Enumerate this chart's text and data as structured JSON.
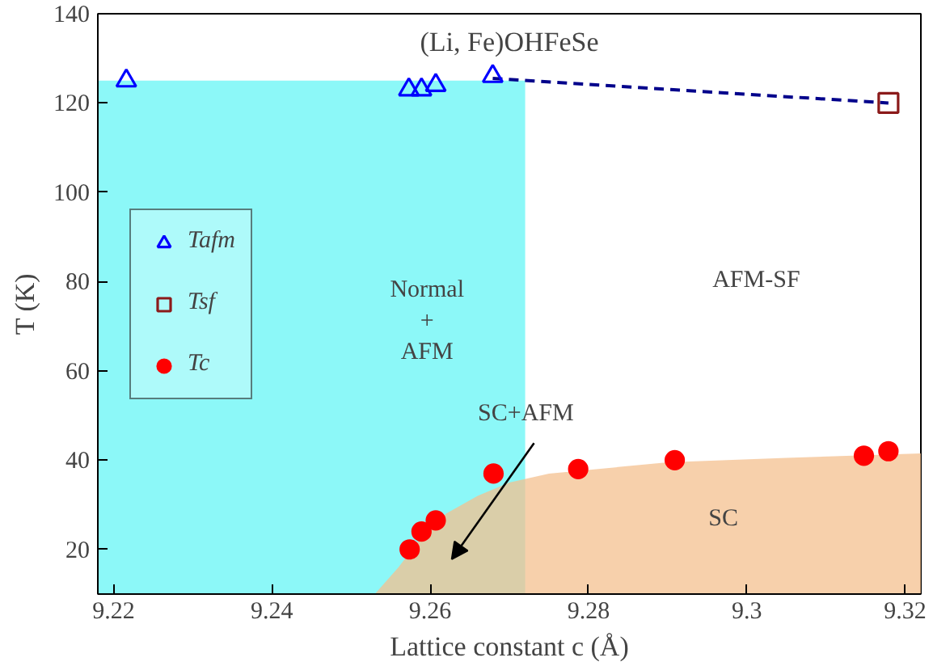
{
  "chart_data": {
    "type": "scatter",
    "title": "(Li, Fe)OHFeSe",
    "xlabel": "Lattice constant c (Å)",
    "ylabel": "T (K)",
    "xlim": [
      9.218,
      9.322
    ],
    "ylim": [
      10,
      140
    ],
    "xticks": [
      9.22,
      9.24,
      9.26,
      9.28,
      9.3,
      9.32
    ],
    "yticks": [
      20,
      40,
      60,
      80,
      100,
      120,
      140
    ],
    "grid": false,
    "legend": "left",
    "series": [
      {
        "type": "area",
        "color": "#66f5f5",
        "x": [
          9.218,
          9.272
        ],
        "values": [
          125,
          125
        ]
      },
      {
        "type": "area",
        "color": "#f4c08f",
        "x": [
          9.253,
          9.256,
          9.259,
          9.262,
          9.266,
          9.27,
          9.275,
          9.29,
          9.305,
          9.322
        ],
        "values": [
          10,
          16,
          23,
          28,
          32,
          35,
          37,
          39.5,
          40.5,
          41.5
        ]
      },
      {
        "type": "line",
        "line_style": "dashed",
        "marker": "none",
        "color": "#00008b",
        "x": [
          9.2679,
          9.3179
        ],
        "values": [
          125.5,
          120
        ]
      },
      {
        "name": "Tafm",
        "marker": "triangle",
        "color": "#0000ff",
        "x": [
          9.2216,
          9.2573,
          9.2589,
          9.2607,
          9.2679
        ],
        "values": [
          125,
          123,
          123,
          124,
          126
        ]
      },
      {
        "name": "Tsf",
        "marker": "square",
        "color": "#8b1a1a",
        "x": [
          9.3179
        ],
        "values": [
          120
        ]
      },
      {
        "name": "Tc",
        "marker": "circle",
        "color": "#ff0000",
        "x": [
          9.2574,
          9.2589,
          9.2607,
          9.268,
          9.2787,
          9.2909,
          9.3148,
          9.3179
        ],
        "values": [
          20,
          24,
          26.5,
          37,
          38,
          40,
          41,
          42
        ]
      }
    ],
    "annotations": [
      "Normal\n+\nAFM",
      "AFM-SF",
      "SC",
      "SC+AFM"
    ]
  }
}
